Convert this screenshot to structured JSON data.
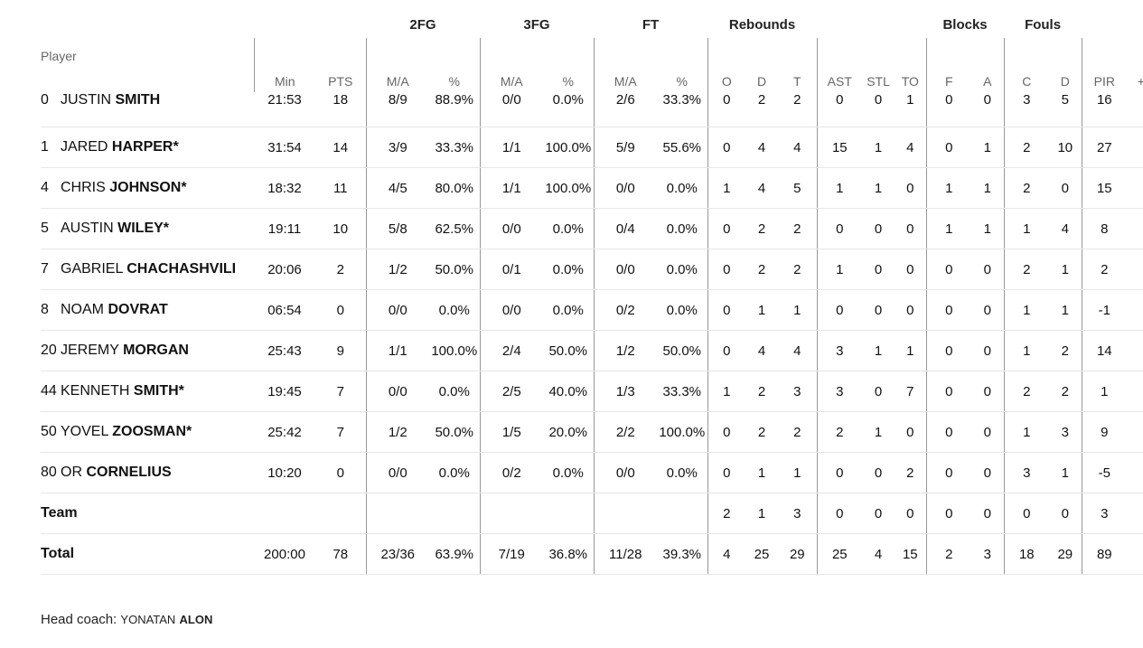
{
  "groups": {
    "two": "2FG",
    "three": "3FG",
    "ft": "FT",
    "reb": "Rebounds",
    "blk": "Blocks",
    "fouls": "Fouls"
  },
  "headers": {
    "player": "Player",
    "min": "Min",
    "pts": "PTS",
    "ma": "M/A",
    "pct": "%",
    "o": "O",
    "d": "D",
    "t": "T",
    "ast": "AST",
    "stl": "STL",
    "to": "TO",
    "f": "F",
    "a": "A",
    "c": "C",
    "fd": "D",
    "pir": "PIR",
    "pm": "+/-"
  },
  "players": [
    {
      "num": "0",
      "first": "JUSTIN",
      "last": "SMITH",
      "min": "21:53",
      "pts": "18",
      "fg2": "8/9",
      "fg2p": "88.9%",
      "fg3": "0/0",
      "fg3p": "0.0%",
      "ft": "2/6",
      "ftp": "33.3%",
      "o": "0",
      "d": "2",
      "t": "2",
      "ast": "0",
      "stl": "0",
      "to": "1",
      "bf": "0",
      "ba": "0",
      "fc": "3",
      "fd": "5",
      "pir": "16"
    },
    {
      "num": "1",
      "first": "JARED",
      "last": "HARPER*",
      "min": "31:54",
      "pts": "14",
      "fg2": "3/9",
      "fg2p": "33.3%",
      "fg3": "1/1",
      "fg3p": "100.0%",
      "ft": "5/9",
      "ftp": "55.6%",
      "o": "0",
      "d": "4",
      "t": "4",
      "ast": "15",
      "stl": "1",
      "to": "4",
      "bf": "0",
      "ba": "1",
      "fc": "2",
      "fd": "10",
      "pir": "27"
    },
    {
      "num": "4",
      "first": "CHRIS",
      "last": "JOHNSON*",
      "min": "18:32",
      "pts": "11",
      "fg2": "4/5",
      "fg2p": "80.0%",
      "fg3": "1/1",
      "fg3p": "100.0%",
      "ft": "0/0",
      "ftp": "0.0%",
      "o": "1",
      "d": "4",
      "t": "5",
      "ast": "1",
      "stl": "1",
      "to": "0",
      "bf": "1",
      "ba": "1",
      "fc": "2",
      "fd": "0",
      "pir": "15"
    },
    {
      "num": "5",
      "first": "AUSTIN",
      "last": "WILEY*",
      "min": "19:11",
      "pts": "10",
      "fg2": "5/8",
      "fg2p": "62.5%",
      "fg3": "0/0",
      "fg3p": "0.0%",
      "ft": "0/4",
      "ftp": "0.0%",
      "o": "0",
      "d": "2",
      "t": "2",
      "ast": "0",
      "stl": "0",
      "to": "0",
      "bf": "1",
      "ba": "1",
      "fc": "1",
      "fd": "4",
      "pir": "8"
    },
    {
      "num": "7",
      "first": "GABRIEL",
      "last": "CHACHASHVILI",
      "min": "20:06",
      "pts": "2",
      "fg2": "1/2",
      "fg2p": "50.0%",
      "fg3": "0/1",
      "fg3p": "0.0%",
      "ft": "0/0",
      "ftp": "0.0%",
      "o": "0",
      "d": "2",
      "t": "2",
      "ast": "1",
      "stl": "0",
      "to": "0",
      "bf": "0",
      "ba": "0",
      "fc": "2",
      "fd": "1",
      "pir": "2"
    },
    {
      "num": "8",
      "first": "NOAM",
      "last": "DOVRAT",
      "min": "06:54",
      "pts": "0",
      "fg2": "0/0",
      "fg2p": "0.0%",
      "fg3": "0/0",
      "fg3p": "0.0%",
      "ft": "0/2",
      "ftp": "0.0%",
      "o": "0",
      "d": "1",
      "t": "1",
      "ast": "0",
      "stl": "0",
      "to": "0",
      "bf": "0",
      "ba": "0",
      "fc": "1",
      "fd": "1",
      "pir": "-1"
    },
    {
      "num": "20",
      "first": "JEREMY",
      "last": "MORGAN",
      "min": "25:43",
      "pts": "9",
      "fg2": "1/1",
      "fg2p": "100.0%",
      "fg3": "2/4",
      "fg3p": "50.0%",
      "ft": "1/2",
      "ftp": "50.0%",
      "o": "0",
      "d": "4",
      "t": "4",
      "ast": "3",
      "stl": "1",
      "to": "1",
      "bf": "0",
      "ba": "0",
      "fc": "1",
      "fd": "2",
      "pir": "14"
    },
    {
      "num": "44",
      "first": "KENNETH",
      "last": "SMITH*",
      "min": "19:45",
      "pts": "7",
      "fg2": "0/0",
      "fg2p": "0.0%",
      "fg3": "2/5",
      "fg3p": "40.0%",
      "ft": "1/3",
      "ftp": "33.3%",
      "o": "1",
      "d": "2",
      "t": "3",
      "ast": "3",
      "stl": "0",
      "to": "7",
      "bf": "0",
      "ba": "0",
      "fc": "2",
      "fd": "2",
      "pir": "1"
    },
    {
      "num": "50",
      "first": "YOVEL",
      "last": "ZOOSMAN*",
      "min": "25:42",
      "pts": "7",
      "fg2": "1/2",
      "fg2p": "50.0%",
      "fg3": "1/5",
      "fg3p": "20.0%",
      "ft": "2/2",
      "ftp": "100.0%",
      "o": "0",
      "d": "2",
      "t": "2",
      "ast": "2",
      "stl": "1",
      "to": "0",
      "bf": "0",
      "ba": "0",
      "fc": "1",
      "fd": "3",
      "pir": "9"
    },
    {
      "num": "80",
      "first": "OR",
      "last": "CORNELIUS",
      "min": "10:20",
      "pts": "0",
      "fg2": "0/0",
      "fg2p": "0.0%",
      "fg3": "0/2",
      "fg3p": "0.0%",
      "ft": "0/0",
      "ftp": "0.0%",
      "o": "0",
      "d": "1",
      "t": "1",
      "ast": "0",
      "stl": "0",
      "to": "2",
      "bf": "0",
      "ba": "0",
      "fc": "3",
      "fd": "1",
      "pir": "-5"
    }
  ],
  "team": {
    "label": "Team",
    "o": "2",
    "d": "1",
    "t": "3",
    "ast": "0",
    "stl": "0",
    "to": "0",
    "bf": "0",
    "ba": "0",
    "fc": "0",
    "fd": "0",
    "pir": "3"
  },
  "total": {
    "label": "Total",
    "min": "200:00",
    "pts": "78",
    "fg2": "23/36",
    "fg2p": "63.9%",
    "fg3": "7/19",
    "fg3p": "36.8%",
    "ft": "11/28",
    "ftp": "39.3%",
    "o": "4",
    "d": "25",
    "t": "29",
    "ast": "25",
    "stl": "4",
    "to": "15",
    "bf": "2",
    "ba": "3",
    "fc": "18",
    "fd": "29",
    "pir": "89"
  },
  "coach": {
    "label": "Head coach:",
    "first": "YONATAN",
    "last": "ALON"
  }
}
